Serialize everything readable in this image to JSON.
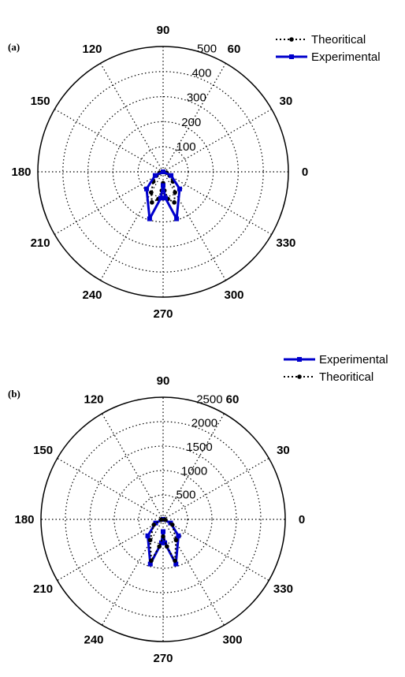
{
  "chart_data": [
    {
      "type": "polar-line",
      "panel_label": "(a)",
      "angle_ticks": [
        0,
        30,
        60,
        90,
        120,
        150,
        180,
        210,
        240,
        270,
        300,
        330
      ],
      "angle_labels": [
        "0",
        "30",
        "60",
        "90",
        "120",
        "150",
        "180",
        "210",
        "240",
        "270",
        "300",
        "330"
      ],
      "radial_ticks": [
        100,
        200,
        300,
        400,
        500
      ],
      "radial_labels": [
        "100",
        "200",
        "300",
        "400",
        "500"
      ],
      "rlim": [
        0,
        500
      ],
      "grid": true,
      "legend_position": "top-right",
      "legend": [
        "Theoritical",
        "Experimental"
      ],
      "series": [
        {
          "name": "Theoritical",
          "style": "dotted",
          "color": "#000000",
          "theta": [
            270,
            274,
            280,
            290,
            300,
            315,
            330,
            345,
            360
          ],
          "r": [
            45,
            75,
            110,
            130,
            95,
            55,
            30,
            15,
            0
          ],
          "mirror": true
        },
        {
          "name": "Experimental",
          "style": "solid",
          "color": "#0000cc",
          "theta": [
            270,
            275,
            286,
            314,
            335,
            360
          ],
          "r": [
            55,
            105,
            195,
            95,
            35,
            0
          ],
          "mirror": true
        }
      ]
    },
    {
      "type": "polar-line",
      "panel_label": "(b)",
      "angle_ticks": [
        0,
        30,
        60,
        90,
        120,
        150,
        180,
        210,
        240,
        270,
        300,
        330
      ],
      "angle_labels": [
        "0",
        "30",
        "60",
        "90",
        "120",
        "150",
        "180",
        "210",
        "240",
        "270",
        "300",
        "330"
      ],
      "radial_ticks": [
        500,
        1000,
        1500,
        2000,
        2500
      ],
      "radial_labels": [
        "500",
        "1000",
        "1500",
        "2000",
        "2500"
      ],
      "rlim": [
        0,
        2500
      ],
      "grid": true,
      "legend_position": "top-right",
      "legend": [
        "Experimental",
        "Theoritical"
      ],
      "series": [
        {
          "name": "Experimental",
          "style": "solid",
          "color": "#0000cc",
          "theta": [
            270,
            274,
            286,
            313,
            334,
            360
          ],
          "r": [
            250,
            480,
            950,
            460,
            170,
            0
          ],
          "mirror": true
        },
        {
          "name": "Theoritical",
          "style": "dotted",
          "color": "#000000",
          "theta": [
            270,
            278,
            286,
            302,
            330,
            352
          ],
          "r": [
            350,
            560,
            880,
            500,
            220,
            40
          ],
          "mirror": true
        }
      ]
    }
  ]
}
